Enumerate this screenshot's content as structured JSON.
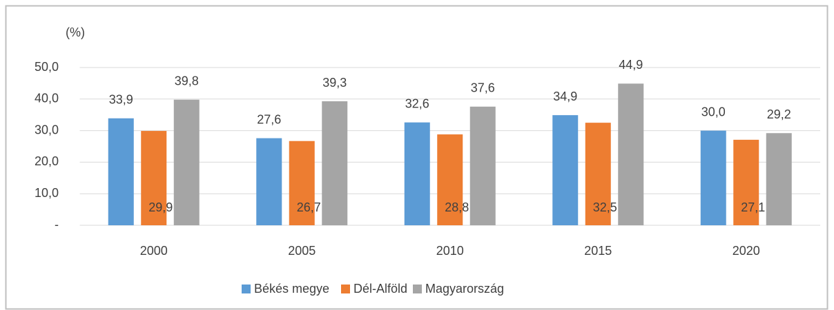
{
  "chart_data": {
    "type": "bar",
    "y_axis_label": "(%)",
    "categories": [
      "2000",
      "2005",
      "2010",
      "2015",
      "2020"
    ],
    "series": [
      {
        "name": "Békés megye",
        "color": "#5b9bd5",
        "values": [
          33.9,
          27.6,
          32.6,
          34.9,
          30.0
        ],
        "value_labels": [
          "33,9",
          "27,6",
          "32,6",
          "34,9",
          "30,0"
        ]
      },
      {
        "name": "Dél-Alföld",
        "color": "#ed7d31",
        "values": [
          29.9,
          26.7,
          28.8,
          32.5,
          27.1
        ],
        "value_labels": [
          "29,9",
          "26,7",
          "28,8",
          "32,5",
          "27,1"
        ]
      },
      {
        "name": "Magyarország",
        "color": "#a5a5a5",
        "values": [
          39.8,
          39.3,
          37.6,
          44.9,
          29.2
        ],
        "value_labels": [
          "39,8",
          "39,3",
          "37,6",
          "44,9",
          "29,2"
        ]
      }
    ],
    "ylim": [
      0,
      50
    ],
    "yticks": [
      {
        "value": 0,
        "label": "-"
      },
      {
        "value": 10,
        "label": "10,0"
      },
      {
        "value": 20,
        "label": "20,0"
      },
      {
        "value": 30,
        "label": "30,0"
      },
      {
        "value": 40,
        "label": "40,0"
      },
      {
        "value": 50,
        "label": "50,0"
      }
    ],
    "grid": true,
    "legend": "bottom"
  }
}
